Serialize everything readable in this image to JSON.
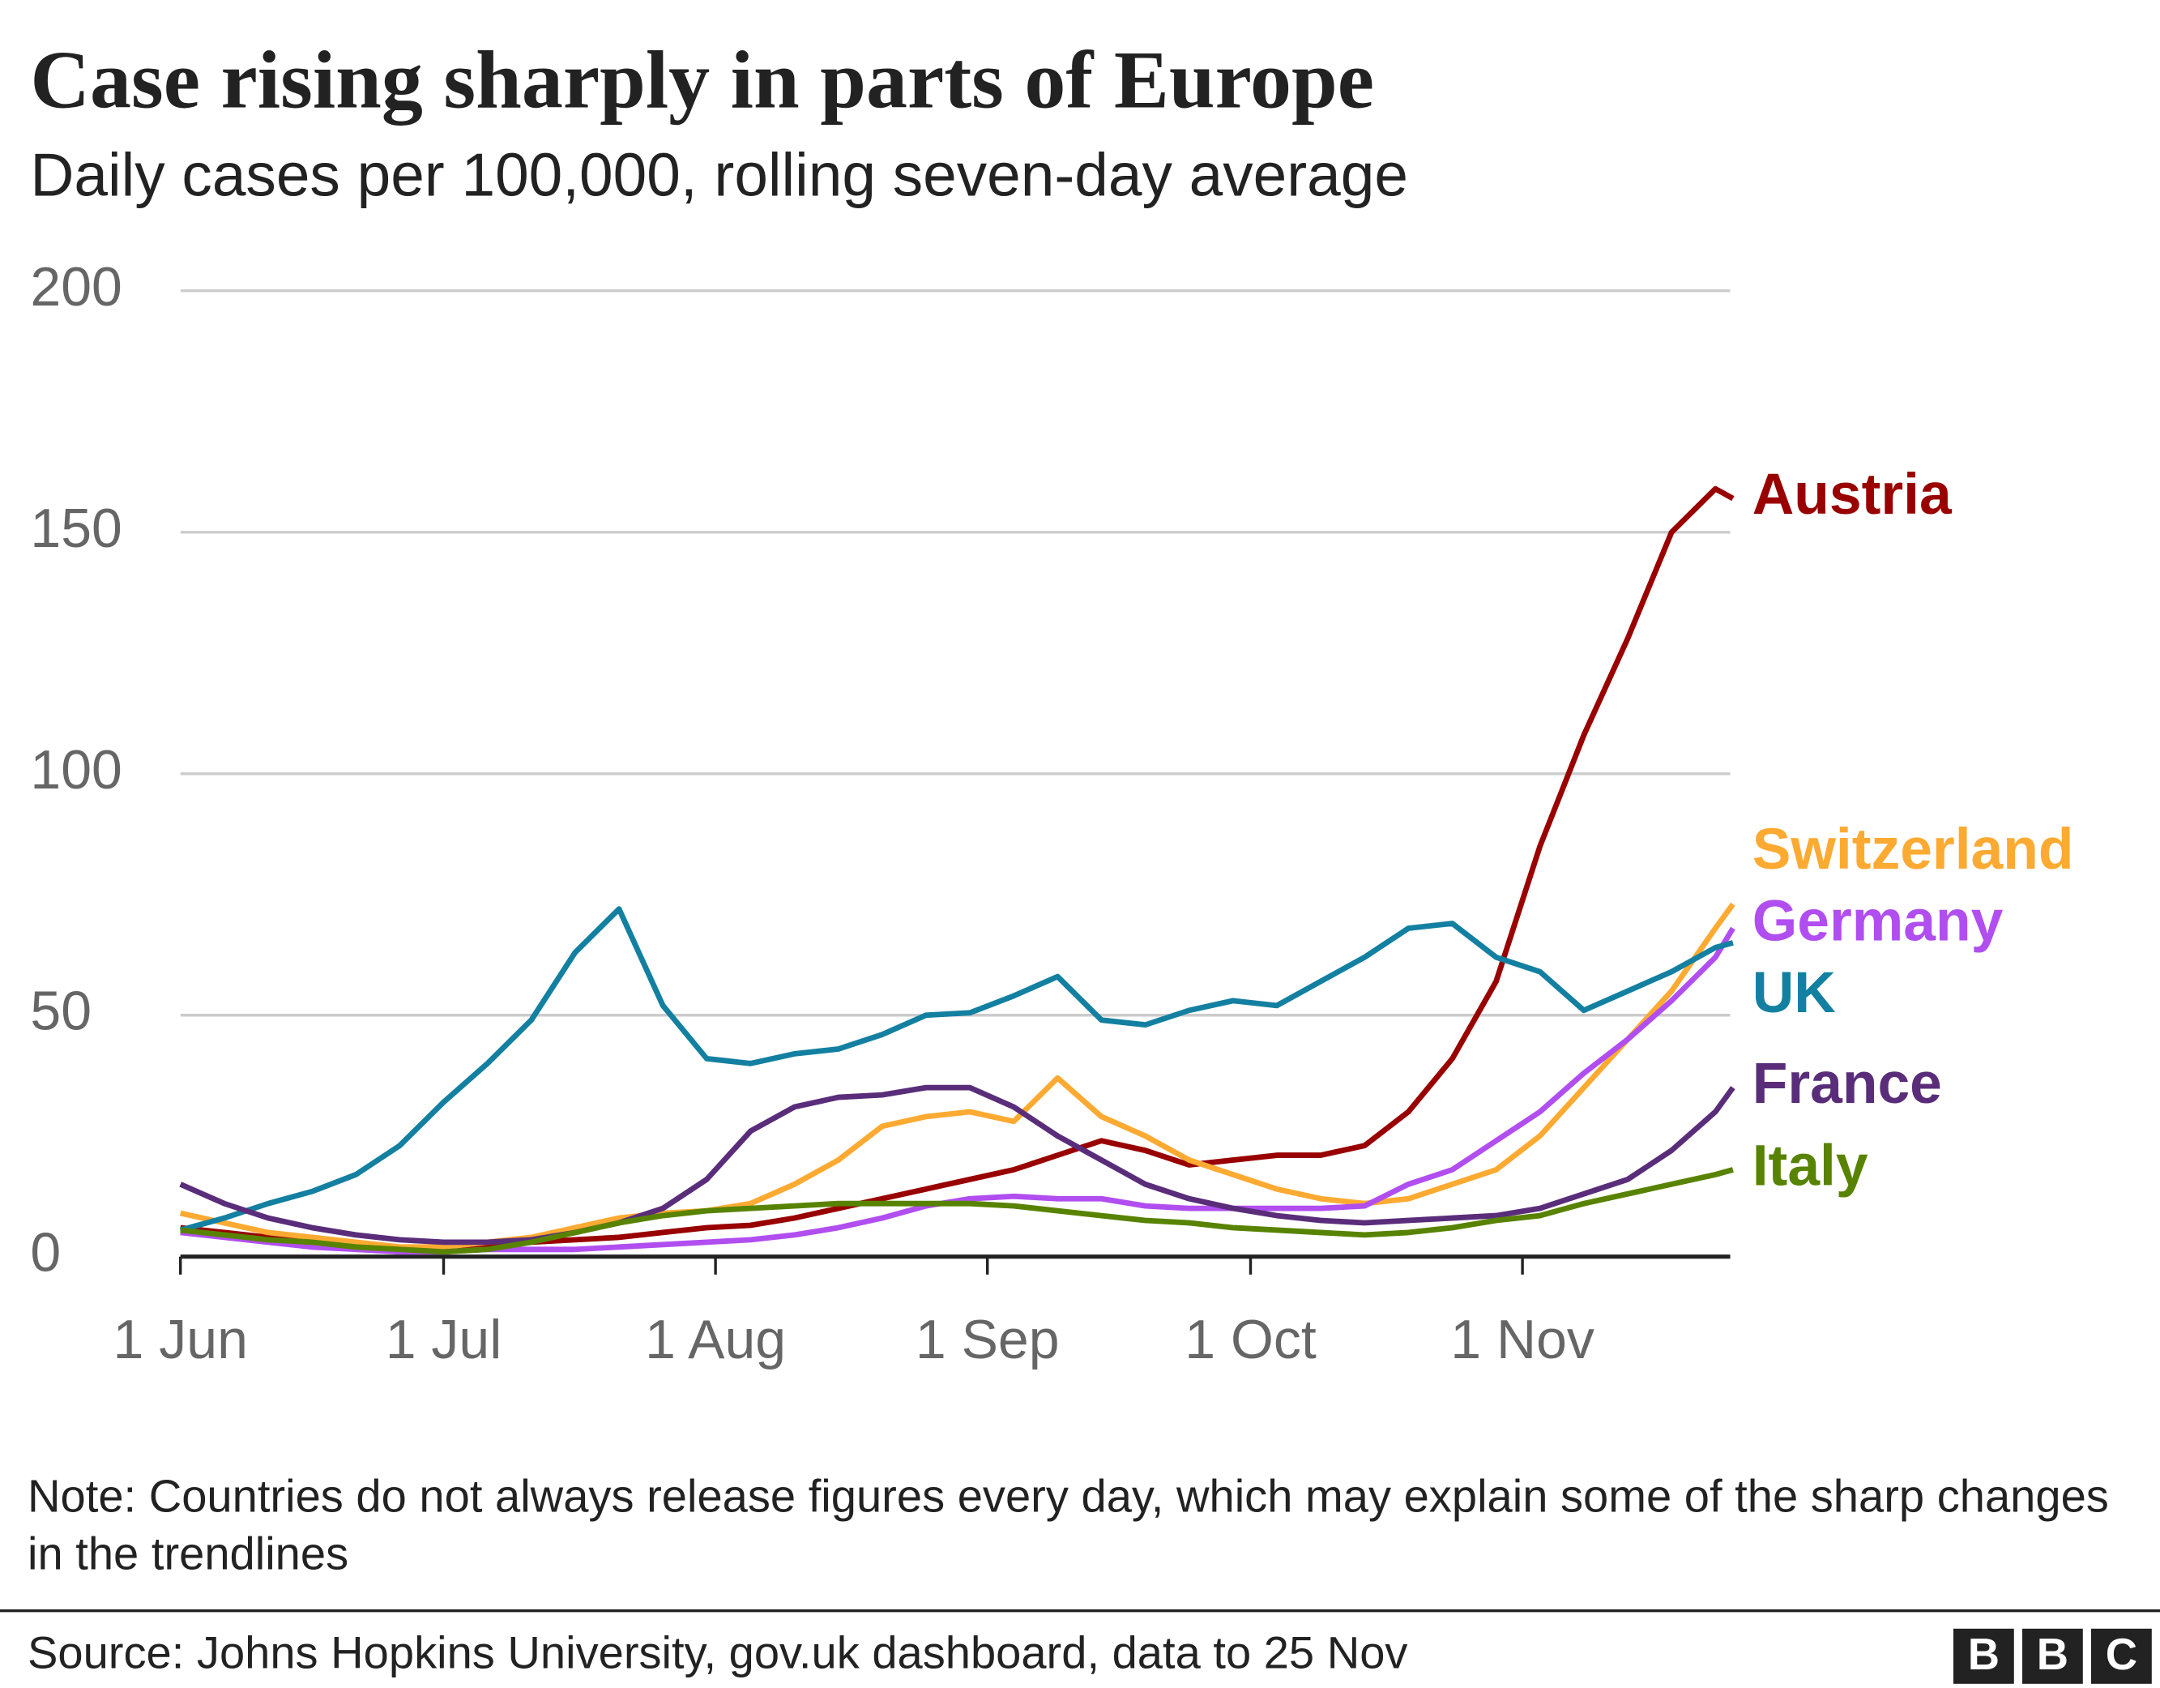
{
  "chart_data": {
    "type": "line",
    "title": "Case rising sharply in parts of Europe",
    "subtitle": "Daily cases per 100,000, rolling seven-day average",
    "x": [
      0,
      5,
      10,
      15,
      20,
      25,
      30,
      35,
      40,
      45,
      50,
      55,
      60,
      65,
      70,
      75,
      80,
      85,
      90,
      95,
      100,
      105,
      110,
      115,
      120,
      125,
      130,
      135,
      140,
      145,
      150,
      155,
      160,
      165,
      170,
      175,
      177
    ],
    "xlim": [
      0,
      177
    ],
    "xticks": [
      {
        "value": 0,
        "label": "1 Jun"
      },
      {
        "value": 30,
        "label": "1 Jul"
      },
      {
        "value": 61,
        "label": "1 Aug"
      },
      {
        "value": 92,
        "label": "1 Sep"
      },
      {
        "value": 122,
        "label": "1 Oct"
      },
      {
        "value": 153,
        "label": "1 Nov"
      }
    ],
    "ylim": [
      0,
      200
    ],
    "yticks": [
      0,
      50,
      100,
      150,
      200
    ],
    "grid": true,
    "series": [
      {
        "name": "Austria",
        "color": "#990000",
        "values": [
          6,
          5,
          4,
          3,
          2,
          1.5,
          1.5,
          2,
          3,
          3.5,
          4,
          5,
          6,
          6.5,
          8,
          10,
          12,
          14,
          16,
          18,
          21,
          24,
          22,
          19,
          20,
          21,
          21,
          23,
          30,
          41,
          57,
          85,
          108,
          128,
          150,
          159,
          157
        ]
      },
      {
        "name": "Switzerland",
        "color": "#fdaa32",
        "values": [
          9,
          7,
          5,
          4,
          3,
          2,
          2,
          3,
          4,
          6,
          8,
          9,
          9.5,
          11,
          15,
          20,
          27,
          29,
          30,
          28,
          37,
          29,
          25,
          20,
          17,
          14,
          12,
          11,
          12,
          15,
          18,
          25,
          35,
          45,
          55,
          68,
          73
        ]
      },
      {
        "name": "Germany",
        "color": "#b14ef0",
        "values": [
          5,
          4,
          3,
          2,
          1.5,
          1,
          1,
          1.5,
          1.5,
          1.5,
          2,
          2.5,
          3,
          3.5,
          4.5,
          6,
          8,
          10.5,
          12,
          12.5,
          12,
          12,
          10.5,
          10,
          10,
          10,
          10,
          10.5,
          15,
          18,
          24,
          30,
          38,
          45,
          53,
          62,
          68
        ]
      },
      {
        "name": "UK",
        "color": "#1380a1",
        "values": [
          5.5,
          8,
          11,
          13.5,
          17,
          23,
          32,
          40,
          49,
          63,
          72,
          52,
          41,
          40,
          42,
          43,
          46,
          50,
          50.5,
          54,
          58,
          49,
          48,
          51,
          53,
          52,
          57,
          62,
          68,
          69,
          62,
          59,
          51,
          55,
          59,
          64,
          65
        ]
      },
      {
        "name": "France",
        "color": "#5a2d7a",
        "values": [
          15,
          11,
          8,
          6,
          4.5,
          3.5,
          3,
          3,
          3.5,
          5,
          7,
          10,
          16,
          26,
          31,
          33,
          33.5,
          35,
          35,
          31,
          25,
          20,
          15,
          12,
          10,
          8.5,
          7.5,
          7,
          7.5,
          8,
          8.5,
          10,
          13,
          16,
          22,
          30,
          35
        ]
      },
      {
        "name": "Italy",
        "color": "#588300",
        "values": [
          5.5,
          4.5,
          3.5,
          3,
          2,
          1.5,
          1,
          1.5,
          3,
          5,
          7,
          8.5,
          9.5,
          10,
          10.5,
          11,
          11,
          11,
          11,
          10.5,
          9.5,
          8.5,
          7.5,
          7,
          6,
          5.5,
          5,
          4.5,
          5,
          6,
          7.5,
          8.5,
          11,
          13,
          15,
          17,
          18
        ]
      }
    ],
    "note": "Note: Countries do not always release figures every day, which may explain some of the sharp changes in the trendlines",
    "source": "Source: Johns Hopkins University, gov.uk dashboard, data to 25 Nov",
    "logo": [
      "B",
      "B",
      "C"
    ]
  }
}
